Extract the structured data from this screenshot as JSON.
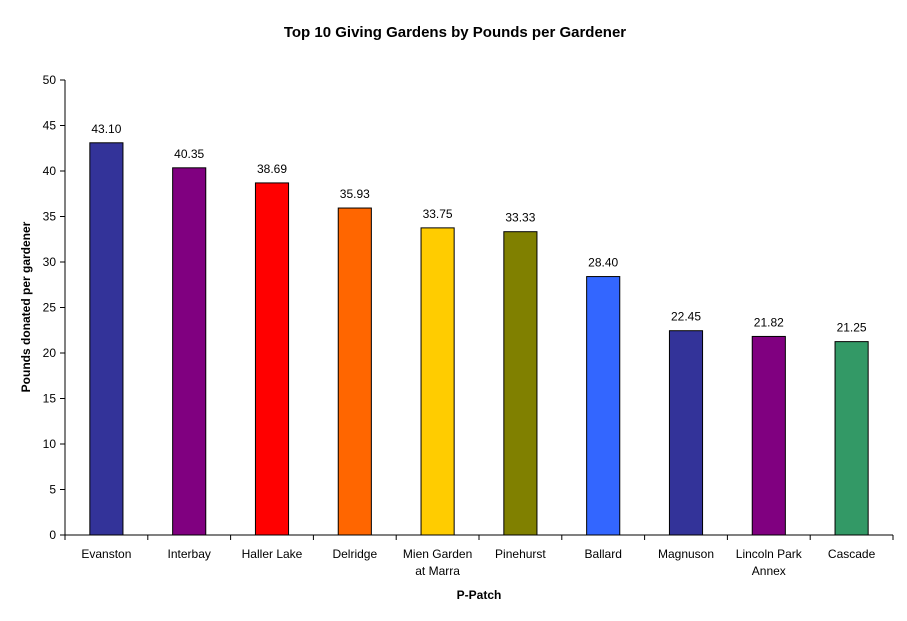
{
  "chart_data": {
    "type": "bar",
    "title": "Top 10 Giving Gardens by Pounds per Gardener",
    "xlabel": "P-Patch",
    "ylabel": "Pounds donated per gardener",
    "ylim": [
      0,
      50
    ],
    "ytick_step": 5,
    "grid": false,
    "legend": "none",
    "categories": [
      [
        "Evanston"
      ],
      [
        "Interbay"
      ],
      [
        "Haller Lake"
      ],
      [
        "Delridge"
      ],
      [
        "Mien Garden",
        "at Marra"
      ],
      [
        "Pinehurst"
      ],
      [
        "Ballard"
      ],
      [
        "Magnuson"
      ],
      [
        "Lincoln Park",
        "Annex"
      ],
      [
        "Cascade"
      ]
    ],
    "values": [
      43.1,
      40.35,
      38.69,
      35.93,
      33.75,
      33.33,
      28.4,
      22.45,
      21.82,
      21.25
    ],
    "value_labels": [
      "43.10",
      "40.35",
      "38.69",
      "35.93",
      "33.75",
      "33.33",
      "28.40",
      "22.45",
      "21.82",
      "21.25"
    ],
    "colors": [
      "#333399",
      "#800080",
      "#FF0000",
      "#FF6600",
      "#FFCC00",
      "#808000",
      "#3366FF",
      "#333399",
      "#800080",
      "#339966"
    ]
  }
}
